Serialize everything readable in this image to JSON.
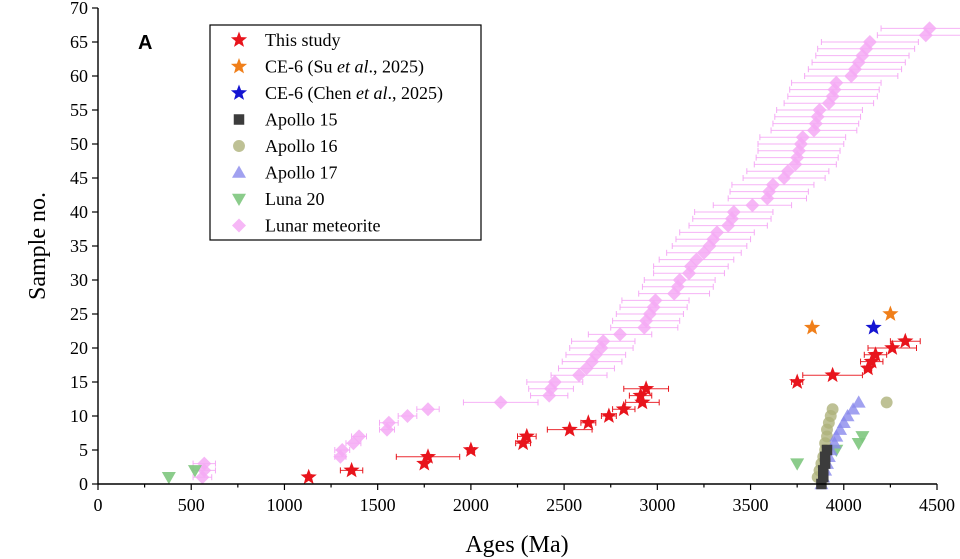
{
  "chart_data": {
    "type": "scatter",
    "panel_label": "A",
    "xlabel": "Ages (Ma)",
    "ylabel": "Sample no.",
    "xlim": [
      0,
      4500
    ],
    "ylim": [
      0,
      70
    ],
    "x_ticks": [
      "0",
      "500",
      "1000",
      "1500",
      "2000",
      "2500",
      "3000",
      "3500",
      "4000",
      "4500"
    ],
    "y_ticks": [
      "0",
      "5",
      "10",
      "15",
      "20",
      "25",
      "30",
      "35",
      "40",
      "45",
      "50",
      "55",
      "60",
      "65",
      "70"
    ],
    "legend_position": "top-left",
    "series": [
      {
        "name": "This study",
        "marker": "star",
        "color": "#e8141c",
        "points": [
          {
            "x": 1130,
            "y": 1,
            "err": 15
          },
          {
            "x": 1360,
            "y": 2,
            "err": 60
          },
          {
            "x": 1750,
            "y": 3,
            "err": 10
          },
          {
            "x": 1770,
            "y": 4,
            "err": 170
          },
          {
            "x": 2000,
            "y": 5,
            "err": 20
          },
          {
            "x": 2280,
            "y": 6,
            "err": 40
          },
          {
            "x": 2300,
            "y": 7,
            "err": 50
          },
          {
            "x": 2530,
            "y": 8,
            "err": 120
          },
          {
            "x": 2630,
            "y": 9,
            "err": 40
          },
          {
            "x": 2740,
            "y": 10,
            "err": 40
          },
          {
            "x": 2820,
            "y": 11,
            "err": 60
          },
          {
            "x": 2920,
            "y": 12,
            "err": 90
          },
          {
            "x": 2910,
            "y": 13,
            "err": 60
          },
          {
            "x": 2940,
            "y": 14,
            "err": 120
          },
          {
            "x": 3750,
            "y": 15,
            "err": 30
          },
          {
            "x": 3940,
            "y": 16,
            "err": 160
          },
          {
            "x": 4130,
            "y": 17,
            "err": 20
          },
          {
            "x": 4150,
            "y": 18,
            "err": 60
          },
          {
            "x": 4170,
            "y": 19,
            "err": 60
          },
          {
            "x": 4260,
            "y": 20,
            "err": 130
          },
          {
            "x": 4330,
            "y": 21,
            "err": 80
          }
        ]
      },
      {
        "name": "CE-6 (Su et al., 2025)",
        "marker": "star",
        "color": "#f07f1a",
        "points": [
          {
            "x": 3830,
            "y": 23
          },
          {
            "x": 4250,
            "y": 25
          }
        ]
      },
      {
        "name": "CE-6 (Chen et al., 2025)",
        "marker": "star",
        "color": "#1414d2",
        "points": [
          {
            "x": 4160,
            "y": 23
          }
        ]
      },
      {
        "name": "Apollo 15",
        "marker": "square",
        "color": "#3c3c3c",
        "points": [
          {
            "x": 3880,
            "y": 0
          },
          {
            "x": 3890,
            "y": 1
          },
          {
            "x": 3890,
            "y": 2
          },
          {
            "x": 3900,
            "y": 3
          },
          {
            "x": 3900,
            "y": 4
          },
          {
            "x": 3910,
            "y": 5
          }
        ]
      },
      {
        "name": "Apollo 16",
        "marker": "circle",
        "color": "#aeb27a",
        "points": [
          {
            "x": 3860,
            "y": 1
          },
          {
            "x": 3870,
            "y": 2
          },
          {
            "x": 3880,
            "y": 3
          },
          {
            "x": 3890,
            "y": 4
          },
          {
            "x": 3900,
            "y": 5
          },
          {
            "x": 3900,
            "y": 6
          },
          {
            "x": 3910,
            "y": 7
          },
          {
            "x": 3910,
            "y": 8
          },
          {
            "x": 3920,
            "y": 9
          },
          {
            "x": 3930,
            "y": 10
          },
          {
            "x": 3940,
            "y": 11
          },
          {
            "x": 4230,
            "y": 12
          }
        ]
      },
      {
        "name": "Apollo 17",
        "marker": "triangle-up",
        "color": "#8a8aec",
        "points": [
          {
            "x": 3880,
            "y": 0
          },
          {
            "x": 3890,
            "y": 1
          },
          {
            "x": 3900,
            "y": 2
          },
          {
            "x": 3910,
            "y": 3
          },
          {
            "x": 3920,
            "y": 4
          },
          {
            "x": 3930,
            "y": 5
          },
          {
            "x": 3950,
            "y": 6
          },
          {
            "x": 3960,
            "y": 7
          },
          {
            "x": 3980,
            "y": 8
          },
          {
            "x": 4000,
            "y": 9
          },
          {
            "x": 4020,
            "y": 10
          },
          {
            "x": 4050,
            "y": 11
          },
          {
            "x": 4080,
            "y": 12
          }
        ]
      },
      {
        "name": "Luna 20",
        "marker": "triangle-down",
        "color": "#7ec77e",
        "points": [
          {
            "x": 380,
            "y": 1
          },
          {
            "x": 520,
            "y": 2
          },
          {
            "x": 3750,
            "y": 3
          },
          {
            "x": 3960,
            "y": 5
          },
          {
            "x": 4080,
            "y": 6
          },
          {
            "x": 4100,
            "y": 7
          }
        ]
      },
      {
        "name": "Lunar meteorite",
        "marker": "diamond",
        "color": "#f5aaf5",
        "points": [
          {
            "x": 560,
            "y": 1,
            "err": 50
          },
          {
            "x": 570,
            "y": 2,
            "err": 60
          },
          {
            "x": 570,
            "y": 3,
            "err": 60
          },
          {
            "x": 1300,
            "y": 4,
            "err": 30
          },
          {
            "x": 1310,
            "y": 5,
            "err": 40
          },
          {
            "x": 1370,
            "y": 6,
            "err": 40
          },
          {
            "x": 1400,
            "y": 7,
            "err": 40
          },
          {
            "x": 1550,
            "y": 8,
            "err": 40
          },
          {
            "x": 1560,
            "y": 9,
            "err": 50
          },
          {
            "x": 1660,
            "y": 10,
            "err": 50
          },
          {
            "x": 1770,
            "y": 11,
            "err": 60
          },
          {
            "x": 2160,
            "y": 12,
            "err": 200
          },
          {
            "x": 2420,
            "y": 13,
            "err": 100
          },
          {
            "x": 2430,
            "y": 14,
            "err": 120
          },
          {
            "x": 2450,
            "y": 15,
            "err": 150
          },
          {
            "x": 2580,
            "y": 16,
            "err": 150
          },
          {
            "x": 2620,
            "y": 17,
            "err": 150
          },
          {
            "x": 2650,
            "y": 18,
            "err": 160
          },
          {
            "x": 2670,
            "y": 19,
            "err": 160
          },
          {
            "x": 2700,
            "y": 20,
            "err": 170
          },
          {
            "x": 2710,
            "y": 21,
            "err": 170
          },
          {
            "x": 2800,
            "y": 22,
            "err": 170
          },
          {
            "x": 2930,
            "y": 23,
            "err": 180
          },
          {
            "x": 2940,
            "y": 24,
            "err": 180
          },
          {
            "x": 2960,
            "y": 25,
            "err": 180
          },
          {
            "x": 2980,
            "y": 26,
            "err": 180
          },
          {
            "x": 2990,
            "y": 27,
            "err": 180
          },
          {
            "x": 3090,
            "y": 28,
            "err": 190
          },
          {
            "x": 3110,
            "y": 29,
            "err": 190
          },
          {
            "x": 3120,
            "y": 30,
            "err": 190
          },
          {
            "x": 3170,
            "y": 31,
            "err": 190
          },
          {
            "x": 3180,
            "y": 32,
            "err": 200
          },
          {
            "x": 3210,
            "y": 33,
            "err": 200
          },
          {
            "x": 3250,
            "y": 34,
            "err": 200
          },
          {
            "x": 3280,
            "y": 35,
            "err": 200
          },
          {
            "x": 3300,
            "y": 36,
            "err": 200
          },
          {
            "x": 3320,
            "y": 37,
            "err": 200
          },
          {
            "x": 3380,
            "y": 38,
            "err": 210
          },
          {
            "x": 3400,
            "y": 39,
            "err": 210
          },
          {
            "x": 3410,
            "y": 40,
            "err": 210
          },
          {
            "x": 3510,
            "y": 41,
            "err": 210
          },
          {
            "x": 3590,
            "y": 42,
            "err": 210
          },
          {
            "x": 3600,
            "y": 43,
            "err": 210
          },
          {
            "x": 3620,
            "y": 44,
            "err": 220
          },
          {
            "x": 3680,
            "y": 45,
            "err": 220
          },
          {
            "x": 3700,
            "y": 46,
            "err": 220
          },
          {
            "x": 3740,
            "y": 47,
            "err": 220
          },
          {
            "x": 3750,
            "y": 48,
            "err": 220
          },
          {
            "x": 3760,
            "y": 49,
            "err": 220
          },
          {
            "x": 3770,
            "y": 50,
            "err": 230
          },
          {
            "x": 3780,
            "y": 51,
            "err": 230
          },
          {
            "x": 3840,
            "y": 52,
            "err": 230
          },
          {
            "x": 3850,
            "y": 53,
            "err": 230
          },
          {
            "x": 3860,
            "y": 54,
            "err": 230
          },
          {
            "x": 3870,
            "y": 55,
            "err": 230
          },
          {
            "x": 3920,
            "y": 56,
            "err": 240
          },
          {
            "x": 3940,
            "y": 57,
            "err": 240
          },
          {
            "x": 3950,
            "y": 58,
            "err": 240
          },
          {
            "x": 3960,
            "y": 59,
            "err": 240
          },
          {
            "x": 4040,
            "y": 60,
            "err": 250
          },
          {
            "x": 4060,
            "y": 61,
            "err": 250
          },
          {
            "x": 4080,
            "y": 62,
            "err": 250
          },
          {
            "x": 4100,
            "y": 63,
            "err": 250
          },
          {
            "x": 4120,
            "y": 64,
            "err": 260
          },
          {
            "x": 4140,
            "y": 65,
            "err": 260
          },
          {
            "x": 4440,
            "y": 66,
            "err": 260
          },
          {
            "x": 4460,
            "y": 67,
            "err": 260
          }
        ]
      }
    ]
  }
}
